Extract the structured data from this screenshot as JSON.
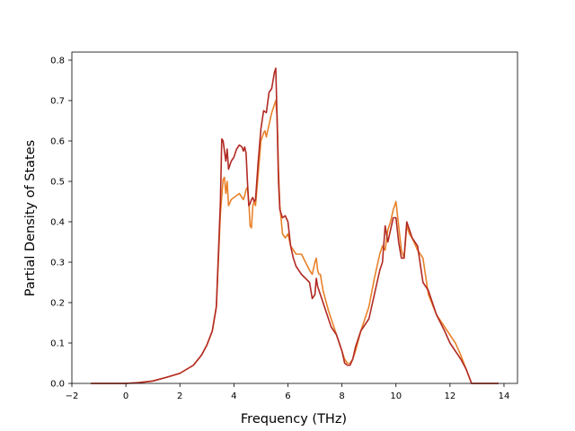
{
  "chart_data": {
    "type": "line",
    "title": "",
    "xlabel": "Frequency (THz)",
    "ylabel": "Partial Density of States",
    "xlim": [
      -2,
      14.5
    ],
    "ylim": [
      0,
      0.82
    ],
    "xticks": [
      -2,
      0,
      2,
      4,
      6,
      8,
      10,
      12,
      14
    ],
    "yticks": [
      0.0,
      0.1,
      0.2,
      0.3,
      0.4,
      0.5,
      0.6,
      0.7,
      0.8
    ],
    "xtick_labels": [
      "−2",
      "0",
      "2",
      "4",
      "6",
      "8",
      "10",
      "12",
      "14"
    ],
    "ytick_labels": [
      "0.0",
      "0.1",
      "0.2",
      "0.3",
      "0.4",
      "0.5",
      "0.6",
      "0.7",
      "0.8"
    ],
    "grid": false,
    "legend": "none",
    "series": [
      {
        "color": "#e8822a",
        "x": [
          -1.3,
          0,
          0.5,
          1.0,
          1.5,
          2.0,
          2.5,
          2.8,
          3.0,
          3.2,
          3.35,
          3.5,
          3.6,
          3.65,
          3.7,
          3.75,
          3.8,
          3.9,
          4.0,
          4.2,
          4.35,
          4.4,
          4.45,
          4.5,
          4.55,
          4.6,
          4.65,
          4.7,
          4.75,
          4.8,
          4.9,
          5.0,
          5.1,
          5.15,
          5.2,
          5.3,
          5.4,
          5.5,
          5.55,
          5.6,
          5.65,
          5.7,
          5.8,
          5.9,
          6.0,
          6.1,
          6.2,
          6.3,
          6.5,
          6.8,
          6.9,
          7.0,
          7.05,
          7.1,
          7.15,
          7.2,
          7.3,
          7.5,
          7.8,
          8.0,
          8.1,
          8.2,
          8.3,
          8.4,
          8.5,
          8.7,
          9.0,
          9.2,
          9.4,
          9.5,
          9.6,
          9.7,
          9.8,
          9.9,
          10.0,
          10.1,
          10.2,
          10.3,
          10.4,
          10.5,
          10.6,
          10.8,
          11.0,
          11.2,
          11.5,
          11.8,
          12.0,
          12.2,
          12.4,
          12.6,
          12.8,
          13.0,
          13.8
        ],
        "y": [
          0,
          0,
          0.002,
          0.006,
          0.015,
          0.025,
          0.045,
          0.07,
          0.095,
          0.13,
          0.19,
          0.42,
          0.505,
          0.51,
          0.47,
          0.5,
          0.44,
          0.455,
          0.46,
          0.47,
          0.455,
          0.465,
          0.48,
          0.485,
          0.45,
          0.39,
          0.385,
          0.44,
          0.45,
          0.44,
          0.52,
          0.6,
          0.62,
          0.625,
          0.61,
          0.64,
          0.67,
          0.69,
          0.7,
          0.66,
          0.53,
          0.44,
          0.37,
          0.36,
          0.37,
          0.34,
          0.33,
          0.32,
          0.32,
          0.28,
          0.27,
          0.3,
          0.31,
          0.28,
          0.27,
          0.27,
          0.23,
          0.18,
          0.12,
          0.08,
          0.06,
          0.05,
          0.05,
          0.06,
          0.08,
          0.13,
          0.19,
          0.26,
          0.32,
          0.34,
          0.33,
          0.38,
          0.4,
          0.43,
          0.45,
          0.39,
          0.33,
          0.31,
          0.39,
          0.37,
          0.36,
          0.33,
          0.31,
          0.22,
          0.17,
          0.14,
          0.12,
          0.1,
          0.07,
          0.035,
          0.0,
          0.0,
          0.0
        ]
      },
      {
        "color": "#b22a24",
        "x": [
          -1.3,
          0,
          0.5,
          1.0,
          1.5,
          2.0,
          2.5,
          2.8,
          3.0,
          3.2,
          3.35,
          3.5,
          3.55,
          3.6,
          3.7,
          3.75,
          3.8,
          3.9,
          4.0,
          4.1,
          4.2,
          4.3,
          4.35,
          4.4,
          4.45,
          4.5,
          4.55,
          4.6,
          4.65,
          4.7,
          4.75,
          4.8,
          4.9,
          5.0,
          5.1,
          5.2,
          5.3,
          5.4,
          5.5,
          5.55,
          5.6,
          5.65,
          5.7,
          5.8,
          5.9,
          6.0,
          6.1,
          6.2,
          6.3,
          6.5,
          6.8,
          6.9,
          7.0,
          7.05,
          7.1,
          7.2,
          7.4,
          7.6,
          7.8,
          8.0,
          8.1,
          8.2,
          8.3,
          8.4,
          8.5,
          8.7,
          9.0,
          9.2,
          9.4,
          9.5,
          9.6,
          9.7,
          9.8,
          9.9,
          10.0,
          10.1,
          10.2,
          10.3,
          10.4,
          10.5,
          10.6,
          10.8,
          11.0,
          11.2,
          11.5,
          11.8,
          12.0,
          12.2,
          12.4,
          12.6,
          12.8,
          13.0,
          13.8
        ],
        "y": [
          0,
          0,
          0.002,
          0.006,
          0.015,
          0.025,
          0.045,
          0.07,
          0.095,
          0.13,
          0.19,
          0.45,
          0.605,
          0.6,
          0.55,
          0.58,
          0.53,
          0.55,
          0.56,
          0.58,
          0.59,
          0.585,
          0.575,
          0.585,
          0.57,
          0.5,
          0.44,
          0.445,
          0.455,
          0.46,
          0.45,
          0.455,
          0.55,
          0.63,
          0.675,
          0.67,
          0.72,
          0.73,
          0.77,
          0.78,
          0.65,
          0.5,
          0.43,
          0.41,
          0.415,
          0.4,
          0.34,
          0.31,
          0.29,
          0.27,
          0.25,
          0.21,
          0.22,
          0.26,
          0.24,
          0.22,
          0.18,
          0.14,
          0.12,
          0.08,
          0.05,
          0.045,
          0.045,
          0.06,
          0.09,
          0.13,
          0.16,
          0.22,
          0.28,
          0.3,
          0.39,
          0.35,
          0.38,
          0.41,
          0.41,
          0.35,
          0.31,
          0.31,
          0.4,
          0.38,
          0.36,
          0.34,
          0.25,
          0.23,
          0.17,
          0.13,
          0.1,
          0.08,
          0.06,
          0.035,
          0.0,
          0.0,
          0.0
        ]
      }
    ]
  }
}
